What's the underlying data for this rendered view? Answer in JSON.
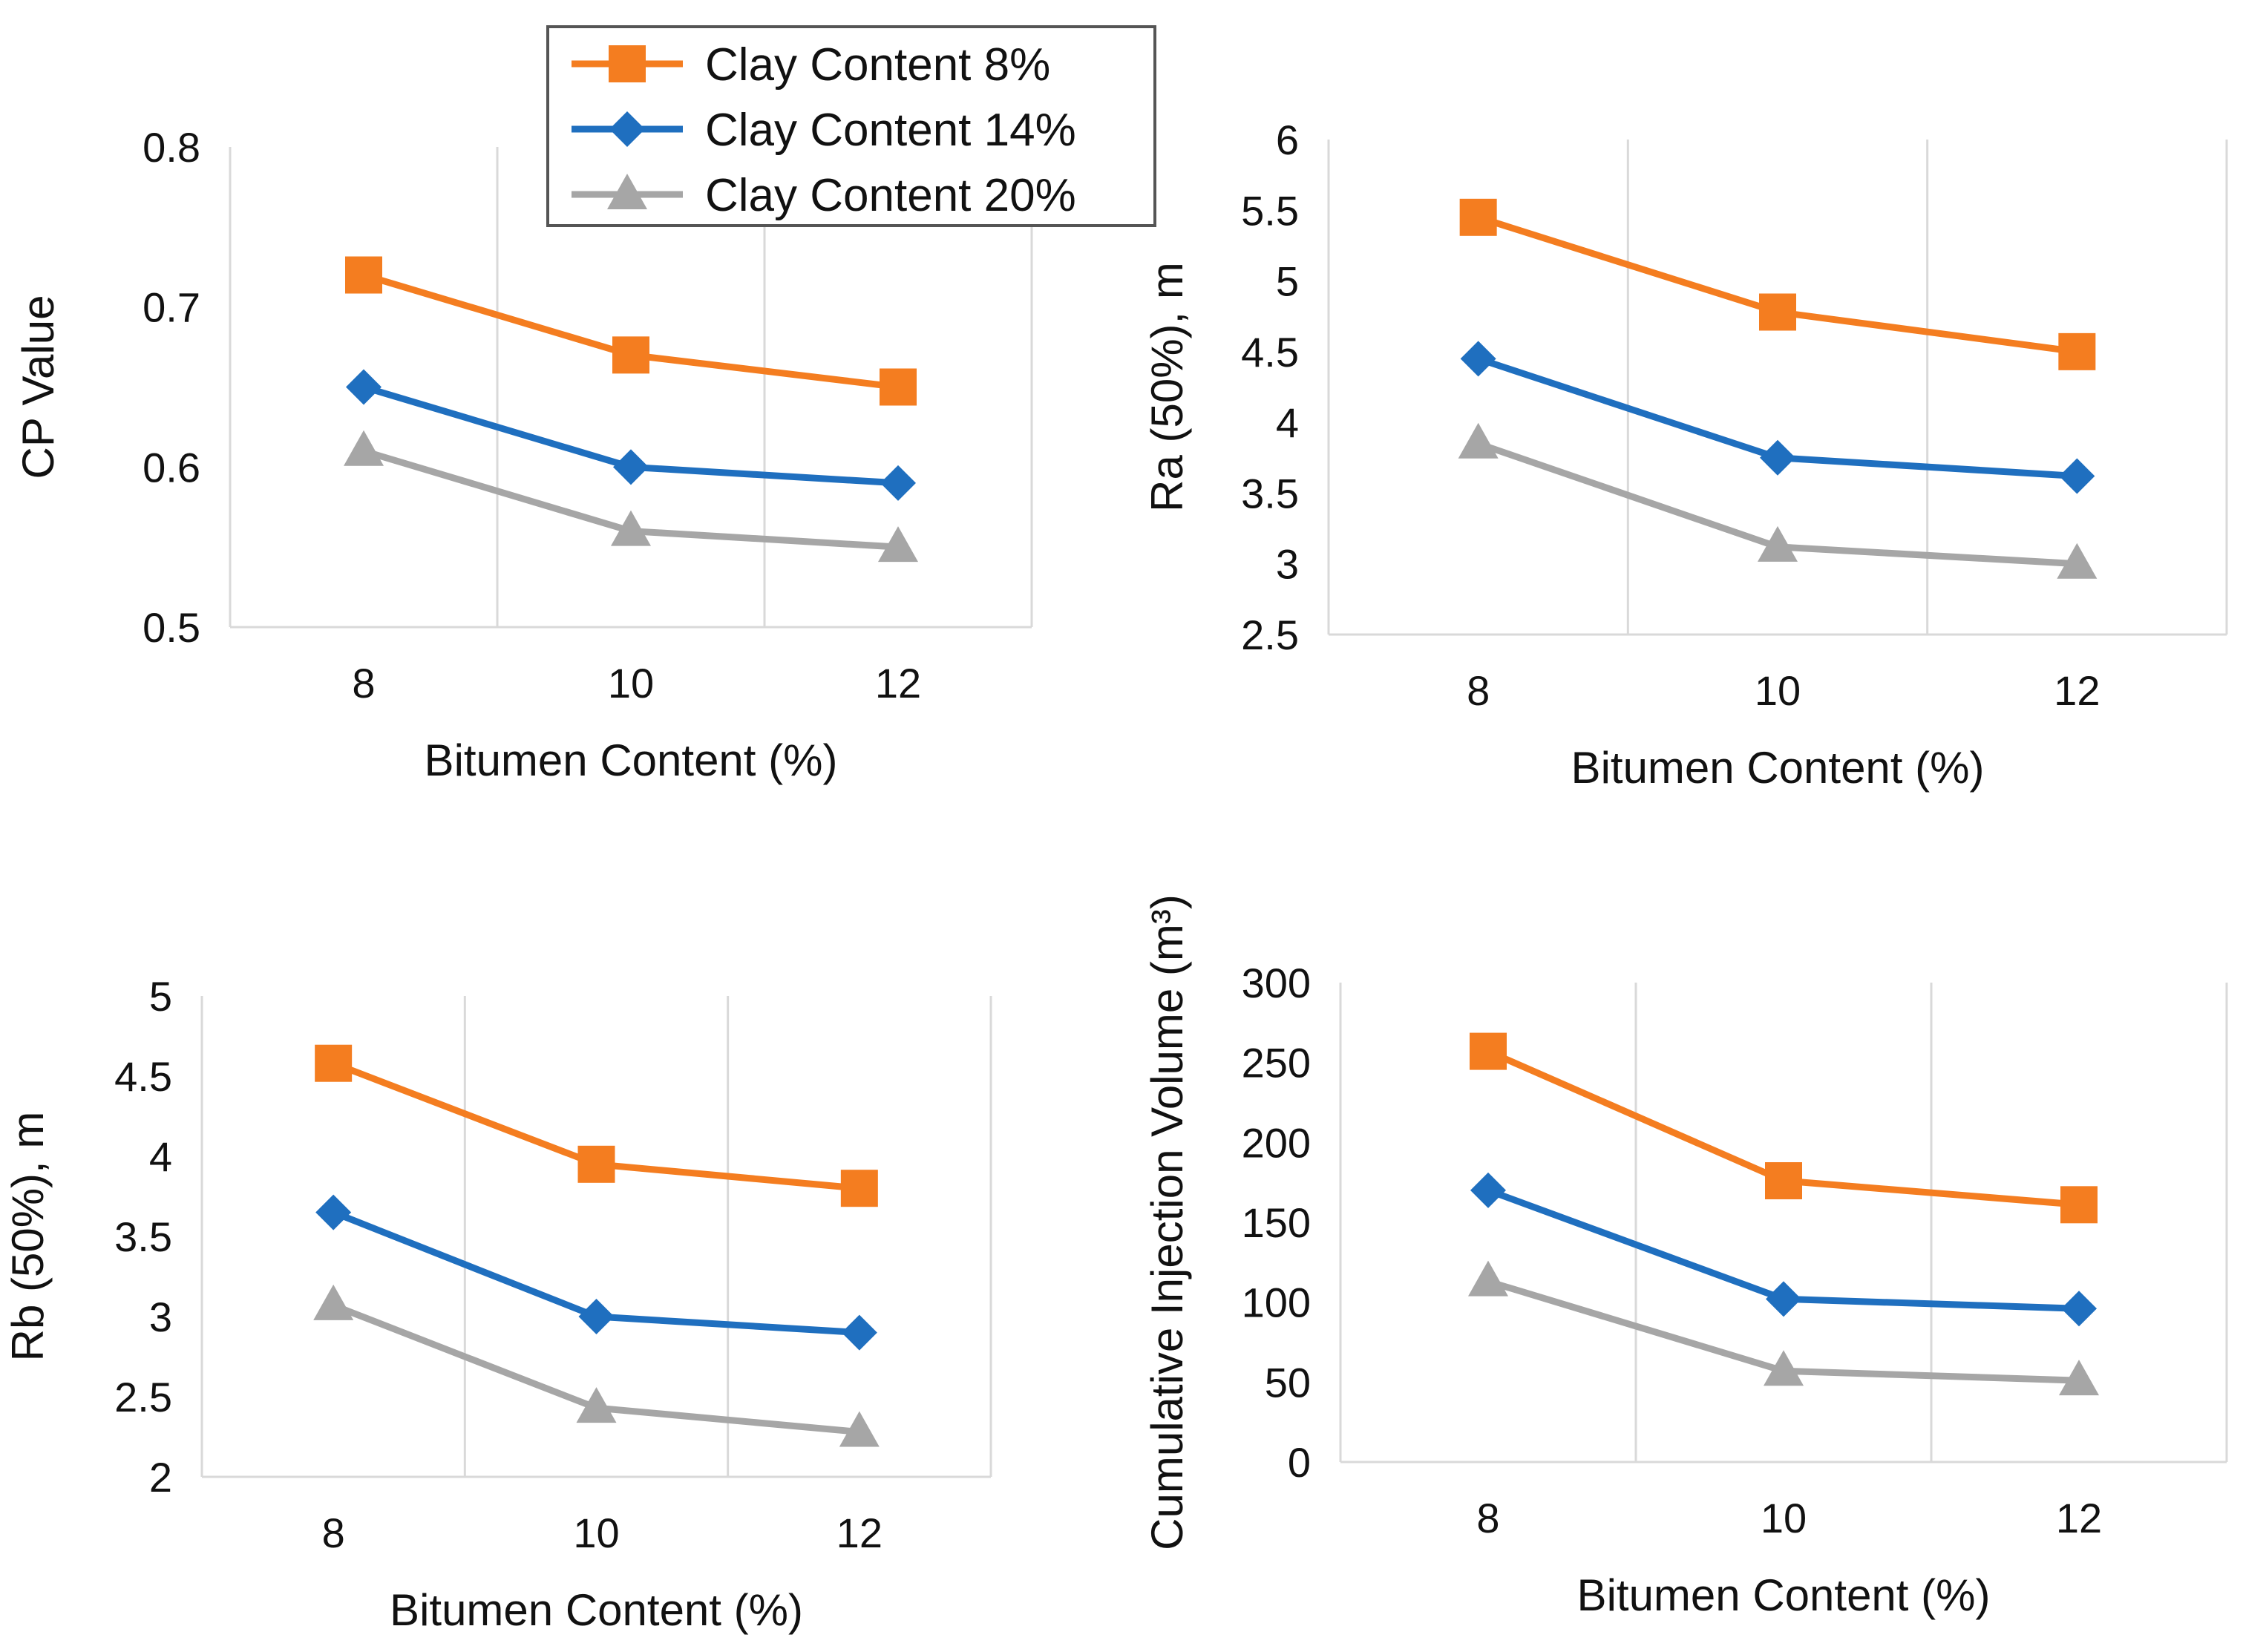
{
  "colors": {
    "series": [
      "#f47d20",
      "#1f6fbf",
      "#a6a6a6"
    ],
    "grid": "#d9d9d9",
    "text": "#111111",
    "legend_border": "#555555"
  },
  "legend": {
    "entries": [
      "Clay Content 8%",
      "Clay Content 14%",
      "Clay Content 20%"
    ],
    "markers": [
      "square",
      "diamond",
      "triangle"
    ],
    "placement": "top-center"
  },
  "chart_data": [
    {
      "type": "line",
      "title": "",
      "xlabel": "Bitumen Content (%)",
      "ylabel": "CP Value",
      "categories": [
        "8",
        "10",
        "12"
      ],
      "yticks": [
        "0.5",
        "0.6",
        "0.7",
        "0.8"
      ],
      "ylim": [
        0.5,
        0.8
      ],
      "grid": "vertical",
      "series": [
        {
          "name": "Clay Content 8%",
          "values": [
            0.72,
            0.67,
            0.65
          ]
        },
        {
          "name": "Clay Content 14%",
          "values": [
            0.65,
            0.6,
            0.59
          ]
        },
        {
          "name": "Clay Content 20%",
          "values": [
            0.61,
            0.56,
            0.55
          ]
        }
      ]
    },
    {
      "type": "line",
      "title": "",
      "xlabel": "Bitumen Content (%)",
      "ylabel": "Ra (50%), m",
      "categories": [
        "8",
        "10",
        "12"
      ],
      "yticks": [
        "2.5",
        "3",
        "3.5",
        "4",
        "4.5",
        "5",
        "5.5",
        "6"
      ],
      "ylim": [
        2.5,
        6
      ],
      "grid": "vertical",
      "series": [
        {
          "name": "Clay Content 8%",
          "values": [
            5.45,
            4.78,
            4.5
          ]
        },
        {
          "name": "Clay Content 14%",
          "values": [
            4.45,
            3.75,
            3.62
          ]
        },
        {
          "name": "Clay Content 20%",
          "values": [
            3.85,
            3.12,
            3.0
          ]
        }
      ]
    },
    {
      "type": "line",
      "title": "",
      "xlabel": "Bitumen Content (%)",
      "ylabel": "Rb (50%), m",
      "categories": [
        "8",
        "10",
        "12"
      ],
      "yticks": [
        "2",
        "2.5",
        "3",
        "3.5",
        "4",
        "4.5",
        "5"
      ],
      "ylim": [
        2,
        5
      ],
      "grid": "vertical",
      "series": [
        {
          "name": "Clay Content 8%",
          "values": [
            4.58,
            3.95,
            3.8
          ]
        },
        {
          "name": "Clay Content 14%",
          "values": [
            3.65,
            3.0,
            2.9
          ]
        },
        {
          "name": "Clay Content 20%",
          "values": [
            3.07,
            2.43,
            2.28
          ]
        }
      ]
    },
    {
      "type": "line",
      "title": "",
      "xlabel": "Bitumen Content (%)",
      "ylabel": "Cumulative Injection Volume (m³)",
      "categories": [
        "8",
        "10",
        "12"
      ],
      "yticks": [
        "0",
        "50",
        "100",
        "150",
        "200",
        "250",
        "300"
      ],
      "ylim": [
        0,
        300
      ],
      "grid": "vertical",
      "series": [
        {
          "name": "Clay Content 8%",
          "values": [
            257,
            176,
            161
          ]
        },
        {
          "name": "Clay Content 14%",
          "values": [
            170,
            102,
            96
          ]
        },
        {
          "name": "Clay Content 20%",
          "values": [
            113,
            57,
            51
          ]
        }
      ]
    }
  ]
}
